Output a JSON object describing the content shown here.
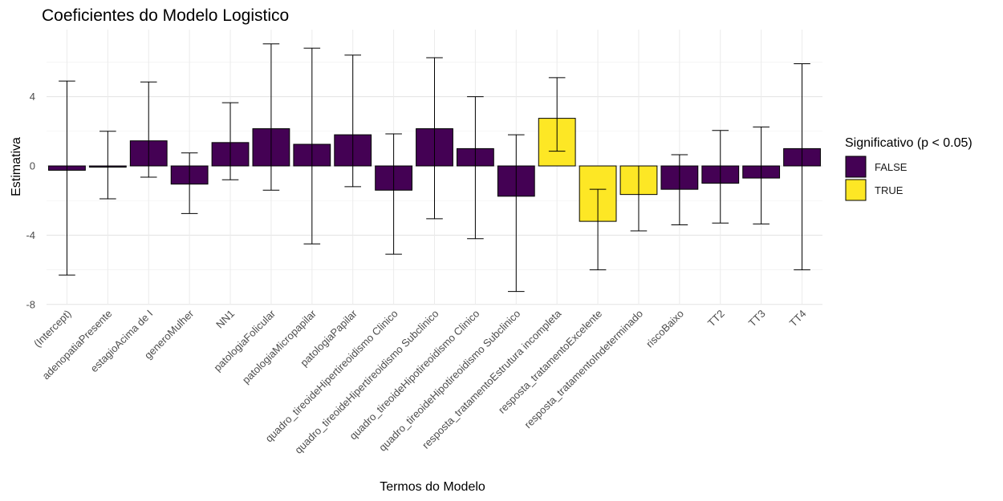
{
  "chart_data": {
    "type": "bar",
    "title": "Coeficientes do Modelo Logistico",
    "xlabel": "Termos do Modelo",
    "ylabel": "Estimativa",
    "ylim": [
      -8,
      7.5
    ],
    "yticks": [
      -8,
      -4,
      0,
      4
    ],
    "grid": true,
    "legend": {
      "title": "Significativo (p < 0.05)",
      "placement": "right",
      "entries": [
        {
          "label": "FALSE",
          "color": "#440154"
        },
        {
          "label": "TRUE",
          "color": "#FDE725"
        }
      ]
    },
    "categories": [
      "(Intercept)",
      "adenopatiaPresente",
      "estagioAcima de I",
      "generoMulher",
      "NN1",
      "patologiaFolicular",
      "patologiaMicropapilar",
      "patologiaPapilar",
      "quadro_tireoideHipertireoidismo Clinico",
      "quadro_tireoideHipertireoidismo Subclinico",
      "quadro_tireoideHipotireoidismo Clinico",
      "quadro_tireoideHipotireoidismo Subclinico",
      "resposta_tratamentoEstrutura incompleta",
      "resposta_tratamentoExcelente",
      "resposta_tratamentoIndeterminado",
      "riscoBaixo",
      "TT2",
      "TT3",
      "TT4"
    ],
    "values": [
      -0.25,
      -0.03,
      1.45,
      -1.05,
      1.35,
      2.15,
      1.25,
      1.8,
      -1.4,
      2.15,
      1.0,
      -1.75,
      2.75,
      -3.2,
      -1.65,
      -1.35,
      -1.0,
      -0.7,
      1.0
    ],
    "lower": [
      -6.3,
      -1.9,
      -0.65,
      -2.75,
      -0.8,
      -1.4,
      -4.5,
      -1.2,
      -5.1,
      -3.05,
      -4.2,
      -7.25,
      0.85,
      -6.0,
      -3.75,
      -3.4,
      -3.3,
      -3.35,
      -6.0
    ],
    "upper": [
      4.9,
      2.0,
      4.85,
      0.75,
      3.65,
      7.05,
      6.8,
      6.4,
      1.85,
      6.25,
      4.0,
      1.8,
      5.1,
      -1.35,
      0.0,
      0.65,
      2.05,
      2.25,
      5.9
    ],
    "significant": [
      false,
      false,
      false,
      false,
      false,
      false,
      false,
      false,
      false,
      false,
      false,
      false,
      true,
      true,
      true,
      false,
      false,
      false,
      false
    ]
  }
}
